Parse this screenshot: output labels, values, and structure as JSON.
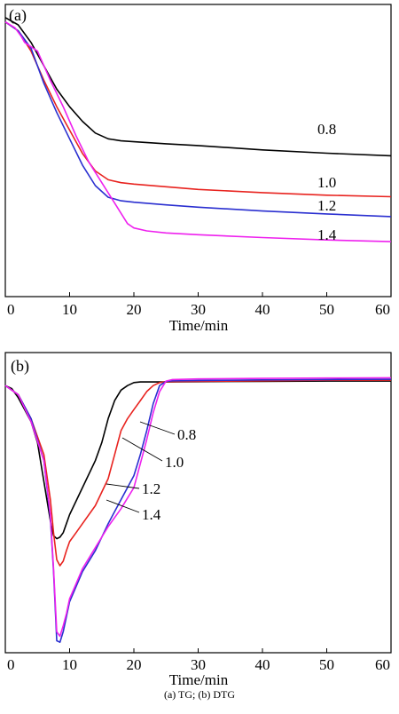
{
  "caption": "(a) TG; (b) DTG",
  "colors": {
    "0.8": "#000000",
    "1.0": "#e8231f",
    "1.2": "#2a2fd0",
    "1.4": "#ee21ee",
    "axis": "#000000"
  },
  "chart_data": [
    {
      "panel": "(a)",
      "type": "line",
      "title": "",
      "xlabel": "Time/min",
      "ylabel": "",
      "xlim": [
        0,
        60
      ],
      "xticks": [
        0,
        10,
        20,
        30,
        40,
        50,
        60
      ],
      "ylim": [
        0,
        100
      ],
      "yticks_shown": false,
      "grid": false,
      "legend": "inline labels",
      "series": [
        {
          "name": "0.8",
          "color": "#000000",
          "x": [
            0,
            2,
            4,
            6,
            8,
            10,
            12,
            14,
            16,
            18,
            20,
            25,
            30,
            40,
            50,
            60
          ],
          "y": [
            95.5,
            93,
            87,
            79,
            71,
            65,
            60,
            56,
            54,
            53.3,
            53,
            52.3,
            51.7,
            50.2,
            49.1,
            48.2
          ]
        },
        {
          "name": "1.0",
          "color": "#e8231f",
          "x": [
            0,
            2,
            4,
            6,
            8,
            10,
            12,
            14,
            16,
            18,
            20,
            25,
            30,
            40,
            50,
            60
          ],
          "y": [
            94,
            91,
            84,
            74,
            65,
            57,
            49,
            43,
            40,
            39,
            38.5,
            37.6,
            36.7,
            35.6,
            34.7,
            34.2
          ]
        },
        {
          "name": "1.2",
          "color": "#2a2fd0",
          "x": [
            0,
            2,
            4,
            6,
            8,
            10,
            12,
            14,
            16,
            18,
            20,
            25,
            30,
            40,
            50,
            60
          ],
          "y": [
            94,
            91,
            85,
            73,
            63,
            54,
            45,
            38,
            34,
            32.8,
            32.3,
            31.4,
            30.6,
            29.3,
            28.3,
            27.4
          ]
        },
        {
          "name": "1.4",
          "color": "#ee21ee",
          "x": [
            0,
            1.5,
            2.5,
            3,
            5,
            7,
            9,
            11,
            13,
            15,
            17,
            19,
            20,
            22,
            25,
            30,
            40,
            50,
            60
          ],
          "y": [
            94,
            92,
            89,
            87,
            84,
            74,
            65,
            55,
            46,
            39,
            32,
            25,
            23.5,
            22.5,
            21.8,
            21.2,
            20.2,
            19.4,
            18.8
          ]
        }
      ],
      "annotations": [
        "0.8",
        "1.0",
        "1.2",
        "1.4"
      ]
    },
    {
      "panel": "(b)",
      "type": "line",
      "title": "",
      "xlabel": "Time/min",
      "ylabel": "",
      "xlim": [
        0,
        60
      ],
      "xticks": [
        0,
        10,
        20,
        30,
        40,
        50,
        60
      ],
      "ylim": [
        0,
        100
      ],
      "yticks_shown": false,
      "grid": false,
      "legend": "labels with leader lines",
      "series": [
        {
          "name": "0.8",
          "color": "#000000",
          "x": [
            0,
            1,
            2,
            3,
            4,
            5,
            6,
            7,
            7.5,
            8,
            8.5,
            9,
            9.5,
            10,
            12,
            14,
            15,
            16,
            17,
            18,
            19,
            20,
            21,
            22,
            25,
            30,
            40,
            50,
            60
          ],
          "y": [
            89,
            88,
            85,
            81,
            77,
            70,
            57,
            44,
            39,
            38,
            38.5,
            40,
            43,
            46,
            55,
            64,
            70,
            78,
            84,
            87.5,
            89,
            90,
            90.2,
            90.2,
            90.2,
            90.3,
            90.4,
            90.5,
            90.5
          ]
        },
        {
          "name": "1.0",
          "color": "#e8231f",
          "x": [
            0,
            2,
            4,
            6,
            7,
            7.5,
            8,
            8.5,
            9,
            9.5,
            10,
            11,
            12,
            14,
            16,
            17,
            18,
            19,
            20,
            21,
            22,
            23,
            24,
            25,
            30,
            40,
            50,
            60
          ],
          "y": [
            89,
            86,
            78,
            66,
            51,
            40,
            31,
            29,
            30.5,
            34,
            37,
            40,
            43,
            49,
            58,
            66,
            74,
            78,
            81,
            84,
            87,
            89,
            90,
            90.3,
            90.4,
            90.6,
            90.8,
            90.8
          ]
        },
        {
          "name": "1.2",
          "color": "#2a2fd0",
          "x": [
            0,
            2,
            4,
            6,
            7,
            7.5,
            8,
            8.5,
            9,
            9.5,
            10,
            11,
            12,
            14,
            16,
            18,
            20,
            21,
            22,
            23,
            24,
            25,
            26,
            30,
            40,
            50,
            60
          ],
          "y": [
            89,
            86,
            78,
            64,
            45,
            27,
            4,
            3.5,
            7,
            12,
            17,
            22,
            27,
            34,
            43,
            51,
            59,
            66,
            74,
            83,
            89,
            90.4,
            90.6,
            90.7,
            90.9,
            91,
            91.1
          ]
        },
        {
          "name": "1.4",
          "color": "#ee21ee",
          "x": [
            0,
            2,
            4,
            6,
            7,
            7.5,
            8,
            8.5,
            9,
            9.5,
            10,
            11,
            12,
            14,
            16,
            18,
            20,
            21,
            22,
            23,
            24,
            25,
            26,
            30,
            40,
            50,
            60
          ],
          "y": [
            89,
            86,
            77,
            64,
            46,
            28,
            7,
            5.5,
            9,
            13,
            18,
            23,
            28,
            35,
            42,
            48,
            55,
            63,
            71,
            80,
            87,
            90.5,
            91,
            91.2,
            91.4,
            91.5,
            91.6
          ]
        }
      ],
      "annotations": [
        "0.8",
        "1.0",
        "1.2",
        "1.4"
      ]
    }
  ]
}
